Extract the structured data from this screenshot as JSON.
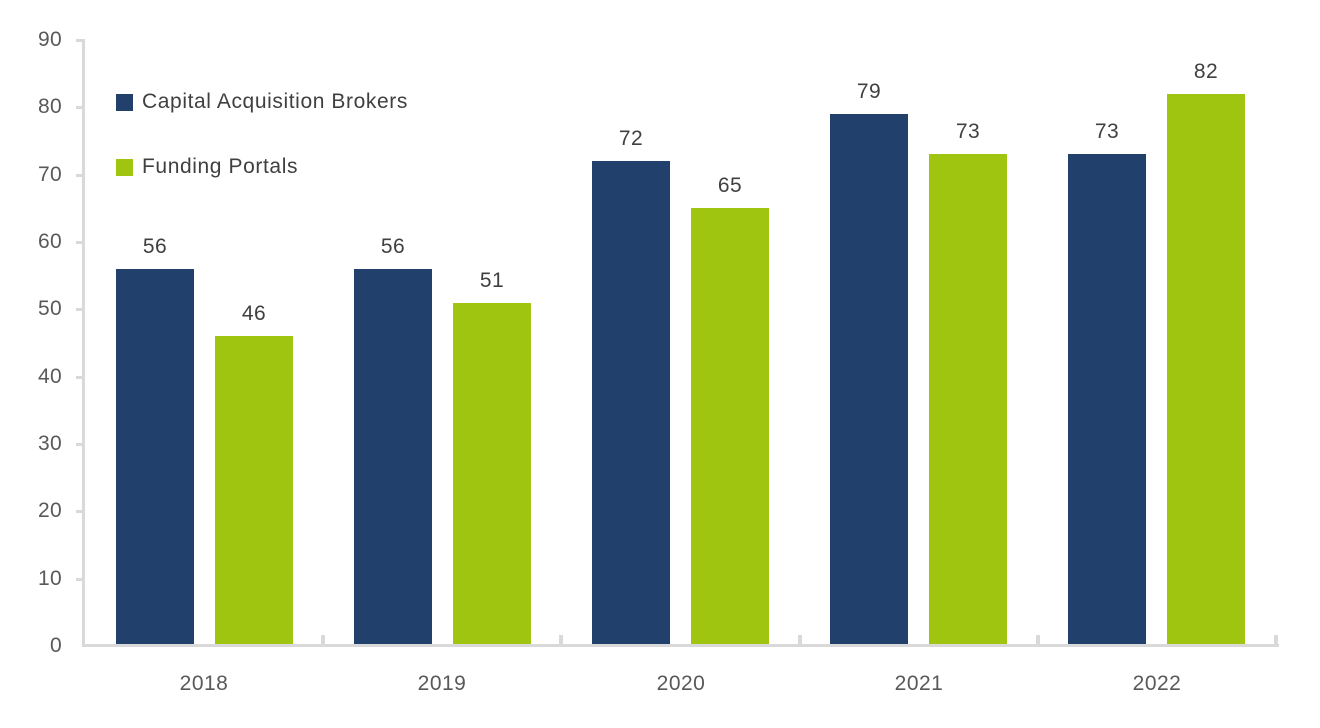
{
  "chart_data": {
    "type": "bar",
    "title": "",
    "xlabel": "",
    "ylabel": "",
    "categories": [
      "2018",
      "2019",
      "2020",
      "2021",
      "2022"
    ],
    "series": [
      {
        "name": "Capital Acquisition Brokers",
        "color": "#21406B",
        "values": [
          56,
          56,
          72,
          79,
          73
        ]
      },
      {
        "name": "Funding Portals",
        "color": "#A0C510",
        "values": [
          46,
          51,
          65,
          73,
          82
        ]
      }
    ],
    "ylim": [
      0,
      90
    ],
    "yticks": [
      0,
      10,
      20,
      30,
      40,
      50,
      60,
      70,
      80,
      90
    ],
    "grid": false,
    "legend_position": "top-left",
    "bar_value_labels": true,
    "colors": {
      "axis": "#D9D9D9",
      "tick_label": "#595959",
      "value_label": "#404040",
      "legend_label": "#404040",
      "background": "#FFFFFF"
    }
  }
}
